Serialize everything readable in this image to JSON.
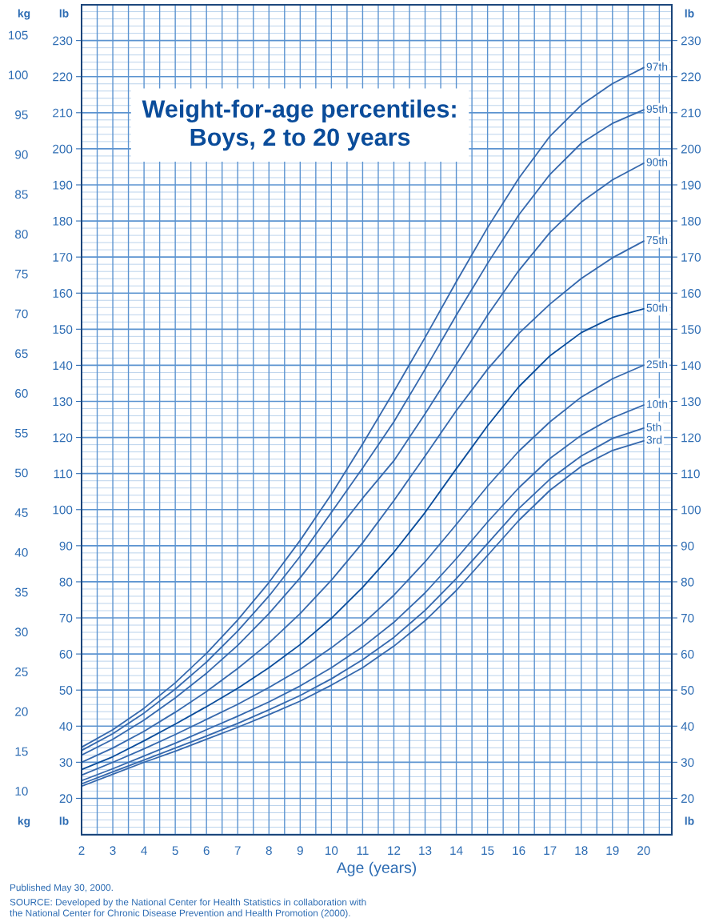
{
  "chart_data": {
    "type": "line",
    "title": "Weight-for-age percentiles:\nBoys, 2 to 20 years",
    "xlabel": "Age (years)",
    "ylabel": "kg",
    "y2label": "lb",
    "y3label": "lb",
    "x": [
      2,
      3,
      4,
      5,
      6,
      7,
      8,
      9,
      10,
      11,
      12,
      13,
      14,
      15,
      16,
      17,
      18,
      19,
      20
    ],
    "series": [
      {
        "name": "97th",
        "color": "#3568ad",
        "values": [
          15.5,
          17.7,
          20.4,
          23.6,
          27.3,
          31.5,
          36.2,
          41.5,
          47.3,
          53.6,
          60.2,
          67.0,
          74.0,
          80.8,
          87.0,
          92.3,
          96.2,
          98.9,
          100.9
        ]
      },
      {
        "name": "95th",
        "color": "#3568ad",
        "values": [
          15.1,
          17.2,
          19.8,
          22.8,
          26.2,
          30.1,
          34.5,
          39.5,
          45.0,
          50.6,
          56.4,
          63.0,
          69.8,
          76.3,
          82.4,
          87.5,
          91.4,
          93.9,
          95.6
        ]
      },
      {
        "name": "90th",
        "color": "#3568ad",
        "values": [
          14.5,
          16.5,
          18.9,
          21.7,
          24.8,
          28.3,
          32.3,
          36.8,
          41.8,
          46.8,
          51.5,
          57.4,
          63.6,
          69.8,
          75.4,
          80.2,
          84.0,
          86.8,
          88.9
        ]
      },
      {
        "name": "75th",
        "color": "#3568ad",
        "values": [
          13.6,
          15.4,
          17.5,
          19.9,
          22.5,
          25.4,
          28.6,
          32.3,
          36.5,
          41.2,
          46.5,
          52.1,
          57.8,
          63.0,
          67.5,
          71.2,
          74.4,
          77.0,
          79.1
        ]
      },
      {
        "name": "50th",
        "color": "#0a4c9a",
        "values": [
          12.7,
          14.3,
          16.3,
          18.4,
          20.6,
          22.9,
          25.5,
          28.4,
          31.7,
          35.6,
          40.0,
          45.0,
          50.5,
          55.9,
          60.8,
          64.7,
          67.6,
          69.5,
          70.6
        ]
      },
      {
        "name": "25th",
        "color": "#3568ad",
        "values": [
          12.0,
          13.6,
          15.3,
          17.1,
          19.0,
          20.9,
          23.0,
          25.3,
          28.0,
          31.0,
          34.6,
          38.8,
          43.5,
          48.3,
          52.7,
          56.4,
          59.5,
          61.8,
          63.5
        ]
      },
      {
        "name": "10th",
        "color": "#3568ad",
        "values": [
          11.3,
          12.8,
          14.4,
          16.0,
          17.7,
          19.4,
          21.2,
          23.2,
          25.5,
          28.1,
          31.2,
          34.9,
          39.2,
          43.8,
          48.1,
          51.8,
          54.7,
          56.9,
          58.5
        ]
      },
      {
        "name": "5th",
        "color": "#3568ad",
        "values": [
          10.9,
          12.4,
          13.9,
          15.4,
          16.9,
          18.5,
          20.2,
          22.0,
          24.1,
          26.5,
          29.3,
          32.7,
          36.7,
          41.1,
          45.5,
          49.2,
          52.1,
          54.3,
          55.6
        ]
      },
      {
        "name": "3rd",
        "color": "#3568ad",
        "values": [
          10.6,
          12.1,
          13.6,
          15.0,
          16.5,
          18.0,
          19.6,
          21.3,
          23.3,
          25.5,
          28.2,
          31.4,
          35.2,
          39.6,
          44.0,
          47.8,
          50.8,
          52.8,
          54.0
        ]
      }
    ],
    "xlim": [
      2,
      20.9
    ],
    "xticks": [
      2,
      3,
      4,
      5,
      6,
      7,
      8,
      9,
      10,
      11,
      12,
      13,
      14,
      15,
      16,
      17,
      18,
      19,
      20
    ],
    "ylim": [
      4.5,
      108.8
    ],
    "yticks": [
      10,
      15,
      20,
      25,
      30,
      35,
      40,
      45,
      50,
      55,
      60,
      65,
      70,
      75,
      80,
      85,
      90,
      95,
      100,
      105
    ],
    "y2lim": [
      9.9,
      239.9
    ],
    "y2ticks": [
      20,
      30,
      40,
      50,
      60,
      70,
      80,
      90,
      100,
      110,
      120,
      130,
      140,
      150,
      160,
      170,
      180,
      190,
      200,
      210,
      220,
      230
    ],
    "y3lim": [
      9.9,
      239.9
    ],
    "y3ticks": [
      20,
      30,
      40,
      50,
      60,
      70,
      80,
      90,
      100,
      110,
      120,
      130,
      140,
      150,
      160,
      170,
      180,
      190,
      200,
      210,
      220,
      230
    ],
    "grid": true,
    "marker": "none",
    "line_style": "solid",
    "annotations": [
      "Published May 30, 2000.",
      "SOURCE: Developed by the National Center for Health Statistics in collaboration with\nthe National Center for Chronic Disease Prevention and Health Promotion (2000)."
    ]
  }
}
